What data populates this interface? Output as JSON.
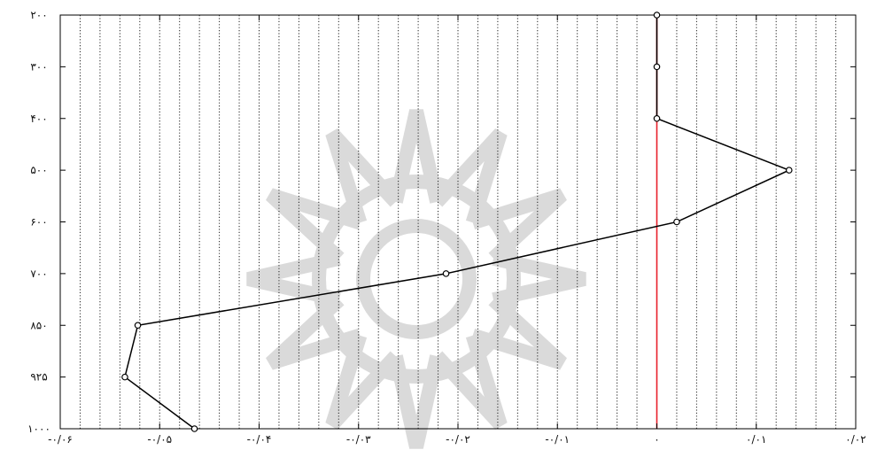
{
  "chart_data": {
    "type": "line",
    "title": "",
    "xlabel": "",
    "ylabel": "",
    "xlim": [
      -0.06,
      0.02
    ],
    "ylim": [
      200,
      1000
    ],
    "y_category_levels": [
      200,
      300,
      400,
      500,
      600,
      700,
      850,
      925,
      1000
    ],
    "x_ticks": [
      {
        "value": -0.06,
        "label": "-۰/۰۶"
      },
      {
        "value": -0.05,
        "label": "-۰/۰۵"
      },
      {
        "value": -0.04,
        "label": "-۰/۰۴"
      },
      {
        "value": -0.03,
        "label": "-۰/۰۳"
      },
      {
        "value": -0.02,
        "label": "-۰/۰۲"
      },
      {
        "value": -0.01,
        "label": "-۰/۰۱"
      },
      {
        "value": 0,
        "label": "۰"
      },
      {
        "value": 0.01,
        "label": "۰/۰۱"
      },
      {
        "value": 0.02,
        "label": "۰/۰۲"
      }
    ],
    "y_ticks": [
      {
        "value": 200,
        "label": "۲۰۰"
      },
      {
        "value": 300,
        "label": "۳۰۰"
      },
      {
        "value": 400,
        "label": "۴۰۰"
      },
      {
        "value": 500,
        "label": "۵۰۰"
      },
      {
        "value": 600,
        "label": "۶۰۰"
      },
      {
        "value": 700,
        "label": "۷۰۰"
      },
      {
        "value": 850,
        "label": "۸۵۰"
      },
      {
        "value": 925,
        "label": "۹۲۵"
      },
      {
        "value": 1000,
        "label": "۱۰۰۰"
      }
    ],
    "grid": {
      "vertical": true,
      "horizontal": false,
      "style": "dotted"
    },
    "reference_line": {
      "x": 0,
      "color": "#e8202a"
    },
    "series": [
      {
        "color": "#000000",
        "marker": "circle",
        "points": [
          {
            "x": 0.0,
            "y": 200
          },
          {
            "x": 0.0,
            "y": 300
          },
          {
            "x": 0.0,
            "y": 400
          },
          {
            "x": 0.0133,
            "y": 500
          },
          {
            "x": 0.002,
            "y": 600
          },
          {
            "x": -0.0212,
            "y": 700
          },
          {
            "x": -0.0522,
            "y": 850
          },
          {
            "x": -0.0535,
            "y": 925
          },
          {
            "x": -0.0465,
            "y": 1000
          }
        ]
      }
    ],
    "watermark": "decorative rosette emblem (gray, centered)"
  }
}
